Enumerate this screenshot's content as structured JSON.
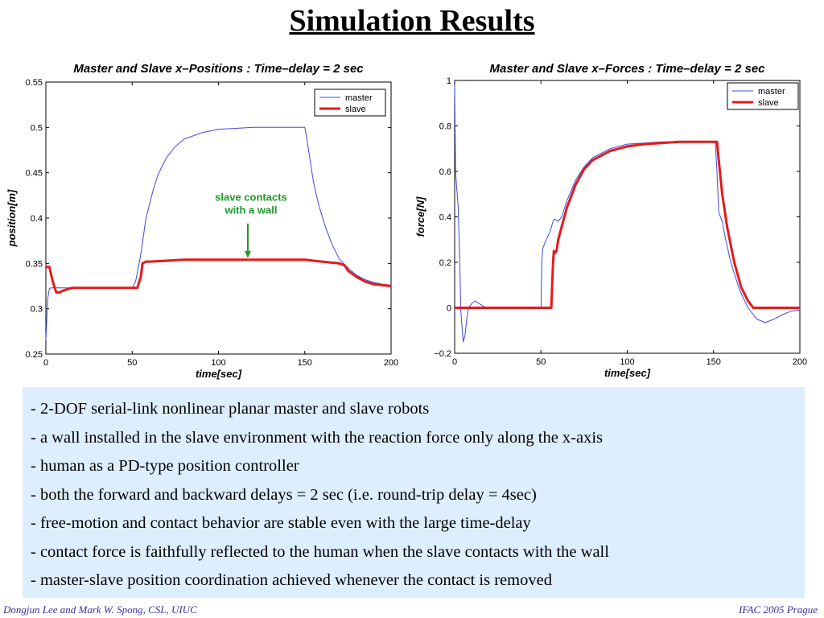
{
  "slide_title": "Simulation Results",
  "colors": {
    "master": "#3f48e0",
    "slave": "#e41a1a",
    "annotation": "#1e9a2a",
    "box": "#ddeeff"
  },
  "chart_data": [
    {
      "type": "line",
      "title": "Master and Slave x–Positions : Time–delay = 2 sec",
      "xlabel": "time[sec]",
      "ylabel": "position[m]",
      "xlim": [
        0,
        200
      ],
      "ylim": [
        0.25,
        0.55
      ],
      "xticks": [
        0,
        50,
        100,
        150,
        200
      ],
      "yticks": [
        0.25,
        0.3,
        0.35,
        0.4,
        0.45,
        0.5,
        0.55
      ],
      "ytick_labels": [
        "0.25",
        "0.3",
        "0.35",
        "0.4",
        "0.45",
        "0.5",
        "0.55"
      ],
      "legend": "top-right",
      "annotation": {
        "text_line1": "slave contacts",
        "text_line2": "with a wall",
        "x": 117,
        "y": 0.355
      },
      "series": [
        {
          "name": "master",
          "x": [
            0,
            1,
            2,
            3,
            5,
            10,
            20,
            40,
            50,
            52,
            55,
            58,
            62,
            65,
            70,
            75,
            80,
            90,
            100,
            110,
            120,
            130,
            140,
            150,
            151,
            153,
            155,
            158,
            162,
            166,
            170,
            175,
            180,
            185,
            190,
            195,
            200
          ],
          "y": [
            0.265,
            0.31,
            0.322,
            0.323,
            0.323,
            0.323,
            0.323,
            0.323,
            0.323,
            0.33,
            0.36,
            0.4,
            0.43,
            0.448,
            0.467,
            0.479,
            0.487,
            0.494,
            0.498,
            0.499,
            0.5,
            0.5,
            0.5,
            0.5,
            0.49,
            0.465,
            0.44,
            0.415,
            0.39,
            0.37,
            0.355,
            0.345,
            0.337,
            0.332,
            0.329,
            0.327,
            0.326
          ]
        },
        {
          "name": "slave",
          "x": [
            0,
            2,
            4,
            6,
            8,
            10,
            15,
            20,
            30,
            40,
            50,
            53,
            55,
            56,
            58,
            60,
            70,
            80,
            90,
            100,
            110,
            120,
            130,
            140,
            150,
            155,
            160,
            165,
            170,
            173,
            175,
            180,
            185,
            190,
            195,
            200
          ],
          "y": [
            0.346,
            0.346,
            0.33,
            0.318,
            0.318,
            0.32,
            0.323,
            0.323,
            0.323,
            0.323,
            0.323,
            0.323,
            0.335,
            0.35,
            0.352,
            0.352,
            0.353,
            0.354,
            0.354,
            0.354,
            0.354,
            0.354,
            0.354,
            0.354,
            0.354,
            0.353,
            0.352,
            0.351,
            0.35,
            0.348,
            0.342,
            0.335,
            0.33,
            0.327,
            0.326,
            0.325
          ]
        }
      ]
    },
    {
      "type": "line",
      "title": "Master and Slave x–Forces : Time–delay = 2 sec",
      "xlabel": "time[sec]",
      "ylabel": "force[N]",
      "xlim": [
        0,
        200
      ],
      "ylim": [
        -0.2,
        1
      ],
      "xticks": [
        0,
        50,
        100,
        150,
        200
      ],
      "yticks": [
        -0.2,
        0,
        0.2,
        0.4,
        0.6,
        0.8,
        1
      ],
      "ytick_labels": [
        "−0.2",
        "0",
        "0.2",
        "0.4",
        "0.6",
        "0.8",
        "1"
      ],
      "legend": "top-right",
      "series": [
        {
          "name": "master",
          "x": [
            0,
            0.5,
            1,
            2,
            3,
            3.5,
            4,
            5,
            6,
            7,
            8,
            10,
            12,
            14,
            16,
            18,
            20,
            25,
            30,
            40,
            50,
            50.5,
            51,
            52,
            53,
            55,
            57,
            58,
            60,
            62,
            65,
            70,
            75,
            80,
            90,
            100,
            110,
            120,
            130,
            140,
            150,
            151,
            152,
            153,
            154,
            155,
            157,
            160,
            165,
            170,
            175,
            180,
            185,
            190,
            195,
            200
          ],
          "y": [
            0.98,
            0.6,
            0.55,
            0.45,
            0.2,
            0.0,
            -0.06,
            -0.15,
            -0.12,
            -0.05,
            0.0,
            0.02,
            0.03,
            0.02,
            0.01,
            0.0,
            0.0,
            0.0,
            0.0,
            0.0,
            0.0,
            0.2,
            0.26,
            0.28,
            0.3,
            0.33,
            0.38,
            0.39,
            0.38,
            0.4,
            0.47,
            0.56,
            0.62,
            0.66,
            0.7,
            0.72,
            0.725,
            0.73,
            0.73,
            0.73,
            0.73,
            0.73,
            0.6,
            0.42,
            0.4,
            0.38,
            0.3,
            0.2,
            0.08,
            0.0,
            -0.05,
            -0.065,
            -0.05,
            -0.03,
            -0.015,
            -0.01
          ]
        },
        {
          "name": "slave",
          "x": [
            0,
            20,
            40,
            56,
            57,
            57.5,
            58,
            59,
            60,
            65,
            70,
            75,
            80,
            90,
            100,
            110,
            120,
            130,
            140,
            150,
            152,
            153,
            155,
            158,
            162,
            166,
            170,
            173,
            175,
            180,
            190,
            200
          ],
          "y": [
            0,
            0,
            0,
            0,
            0.2,
            0.25,
            0.24,
            0.25,
            0.3,
            0.44,
            0.54,
            0.61,
            0.65,
            0.69,
            0.71,
            0.72,
            0.725,
            0.73,
            0.73,
            0.73,
            0.73,
            0.65,
            0.5,
            0.35,
            0.2,
            0.09,
            0.03,
            0.0,
            0.0,
            0.0,
            0.0,
            0.0
          ]
        }
      ]
    }
  ],
  "bullets": [
    "- 2-DOF serial-link nonlinear planar master and slave robots",
    "- a wall installed in the slave environment with the reaction force only along the x-axis",
    "- human as a PD-type position controller",
    "- both the forward and backward delays = 2 sec (i.e. round-trip delay = 4sec)",
    "- free-motion and contact behavior are stable even with the large time-delay",
    "- contact force is faithfully reflected to the human when the slave contacts with the wall",
    "- master-slave position coordination achieved whenever the contact is removed"
  ],
  "footer": {
    "left": "Dongjun Lee and Mark W. Spong, CSL, UIUC",
    "right": "IFAC 2005 Prague"
  }
}
